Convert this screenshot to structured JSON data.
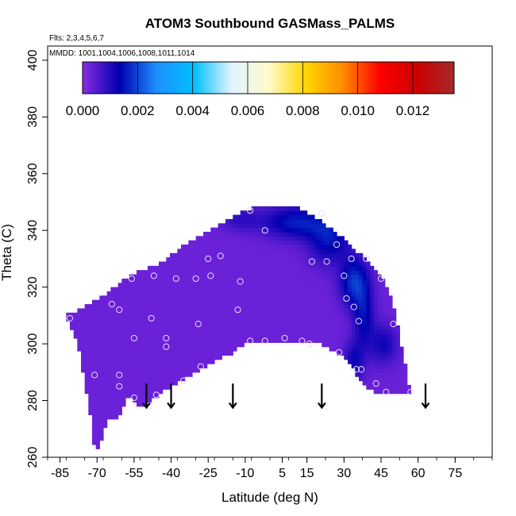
{
  "chart_data": {
    "type": "heatmap",
    "title": "ATOM3 Southbound GASMass_PALMS",
    "annotations": {
      "flights": "Flts: 2,3,4,5,6,7",
      "dates": "MMDD: 1001,1004,1006,1008,1011,1014"
    },
    "xlabel": "Latitude (deg N)",
    "ylabel": "Theta (C)",
    "xlim": [
      -90,
      90
    ],
    "ylim": [
      260,
      405
    ],
    "x_ticks": [
      -85,
      -70,
      -55,
      -40,
      -25,
      -10,
      5,
      15,
      30,
      45,
      60,
      75
    ],
    "x_tick_labels": [
      "-85",
      "-70",
      "-55",
      "-40",
      "-25",
      "-10",
      "5",
      "15",
      "30",
      "45",
      "60",
      "75"
    ],
    "y_ticks": [
      260,
      280,
      300,
      320,
      340,
      360,
      380,
      400
    ],
    "y_tick_labels": [
      "260",
      "280",
      "300",
      "320",
      "340",
      "360",
      "380",
      "400"
    ],
    "colorbar": {
      "range": [
        0,
        0.0135
      ],
      "ticks": [
        0,
        0.002,
        0.004,
        0.006,
        0.008,
        0.01,
        0.012
      ],
      "tick_labels": [
        "0.000",
        "0.002",
        "0.004",
        "0.006",
        "0.008",
        "0.010",
        "0.012"
      ],
      "colors": [
        "#8a2be2",
        "#0000b0",
        "#1e90ff",
        "#00bfff",
        "#e0f4ff",
        "#fffacd",
        "#ffd700",
        "#ff8c00",
        "#ff0000",
        "#cc0000",
        "#a52a2a"
      ]
    },
    "field": {
      "background_value": 0.0003,
      "outline": [
        [
          -83,
          310
        ],
        [
          -78,
          312
        ],
        [
          -72,
          315
        ],
        [
          -66,
          318
        ],
        [
          -60,
          322
        ],
        [
          -54,
          325
        ],
        [
          -48,
          327
        ],
        [
          -42,
          330
        ],
        [
          -36,
          334
        ],
        [
          -30,
          337
        ],
        [
          -24,
          340
        ],
        [
          -18,
          343
        ],
        [
          -12,
          346
        ],
        [
          -6,
          348
        ],
        [
          5,
          348
        ],
        [
          12,
          348
        ],
        [
          18,
          345
        ],
        [
          24,
          341
        ],
        [
          30,
          337
        ],
        [
          36,
          332
        ],
        [
          42,
          327
        ],
        [
          46,
          322
        ],
        [
          50,
          314
        ],
        [
          52,
          306
        ],
        [
          54,
          296
        ],
        [
          56,
          288
        ],
        [
          56.5,
          282
        ],
        [
          50,
          282
        ],
        [
          45,
          282
        ],
        [
          40,
          284
        ],
        [
          36,
          288
        ],
        [
          33,
          292
        ],
        [
          30,
          295
        ],
        [
          25,
          298
        ],
        [
          20,
          300
        ],
        [
          10,
          300
        ],
        [
          0,
          300
        ],
        [
          -10,
          300
        ],
        [
          -15,
          297
        ],
        [
          -20,
          295
        ],
        [
          -24,
          293
        ],
        [
          -28,
          291
        ],
        [
          -32,
          289
        ],
        [
          -36,
          287
        ],
        [
          -40,
          285
        ],
        [
          -44,
          283
        ],
        [
          -48,
          280
        ],
        [
          -51,
          278
        ],
        [
          -54,
          279
        ],
        [
          -57,
          282
        ],
        [
          -59,
          278
        ],
        [
          -62,
          273
        ],
        [
          -65,
          274
        ],
        [
          -67,
          270
        ],
        [
          -68,
          266
        ],
        [
          -70,
          262
        ],
        [
          -71,
          263
        ],
        [
          -72,
          272
        ],
        [
          -74,
          282
        ],
        [
          -76,
          292
        ],
        [
          -78,
          300
        ],
        [
          -80,
          305
        ]
      ],
      "enhancements": [
        {
          "lat": 10,
          "theta": 343,
          "value": 0.0013,
          "sigma_lat": 9,
          "sigma_theta": 4
        },
        {
          "lat": 24,
          "theta": 337,
          "value": 0.0012,
          "sigma_lat": 6,
          "sigma_theta": 6
        },
        {
          "lat": 34,
          "theta": 322,
          "value": 0.0015,
          "sigma_lat": 4,
          "sigma_theta": 6
        },
        {
          "lat": 38,
          "theta": 310,
          "value": 0.0011,
          "sigma_lat": 3,
          "sigma_theta": 8
        },
        {
          "lat": 34,
          "theta": 294,
          "value": 0.0009,
          "sigma_lat": 3,
          "sigma_theta": 5
        },
        {
          "lat": 46,
          "theta": 300,
          "value": 0.0009,
          "sigma_lat": 4,
          "sigma_theta": 5
        },
        {
          "lat": -12,
          "theta": 344,
          "value": 0.0006,
          "sigma_lat": 6,
          "sigma_theta": 3
        }
      ]
    },
    "observations": [
      [
        -81,
        309
      ],
      [
        -64,
        314
      ],
      [
        -61,
        312
      ],
      [
        -48,
        309
      ],
      [
        -56,
        323
      ],
      [
        -47,
        324
      ],
      [
        -38,
        323
      ],
      [
        -25,
        330
      ],
      [
        -20,
        331
      ],
      [
        -24,
        324
      ],
      [
        -30,
        323
      ],
      [
        -12,
        322
      ],
      [
        -13,
        312
      ],
      [
        -8,
        347
      ],
      [
        -2,
        340
      ],
      [
        -29,
        307
      ],
      [
        -42,
        302
      ],
      [
        -42,
        299
      ],
      [
        -55,
        302
      ],
      [
        -71,
        289
      ],
      [
        -61,
        289
      ],
      [
        -61,
        285
      ],
      [
        -55,
        281
      ],
      [
        -46,
        282
      ],
      [
        -49,
        278
      ],
      [
        -35,
        287
      ],
      [
        -28,
        292
      ],
      [
        -8,
        301
      ],
      [
        -2,
        301
      ],
      [
        6,
        302
      ],
      [
        13,
        301
      ],
      [
        16,
        300
      ],
      [
        21,
        346
      ],
      [
        27,
        335
      ],
      [
        30,
        324
      ],
      [
        23,
        329
      ],
      [
        33,
        330
      ],
      [
        39,
        330
      ],
      [
        17,
        329
      ],
      [
        31,
        316
      ],
      [
        34,
        313
      ],
      [
        36,
        308
      ],
      [
        28,
        297
      ],
      [
        37,
        291
      ],
      [
        35,
        291
      ],
      [
        43,
        286
      ],
      [
        47,
        283
      ],
      [
        50,
        307
      ],
      [
        45,
        323
      ],
      [
        57,
        283
      ]
    ],
    "arrows": [
      -50,
      -40,
      -15,
      21,
      63
    ]
  }
}
